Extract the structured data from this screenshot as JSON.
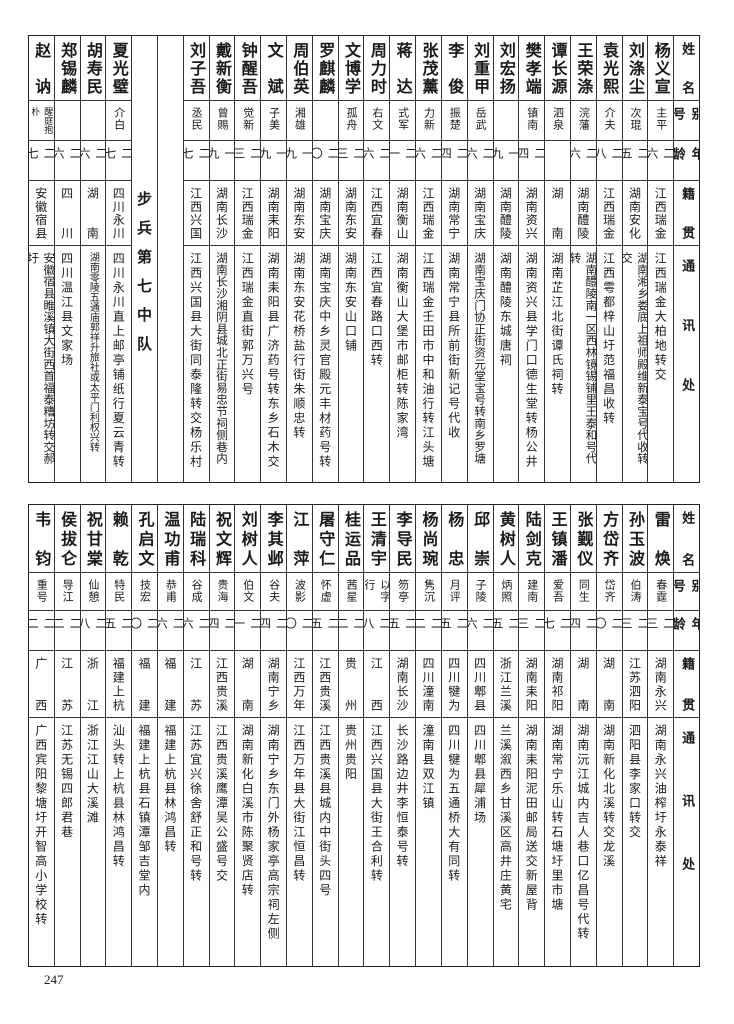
{
  "headers": {
    "name": "姓名",
    "alias": "别号",
    "age": "年龄",
    "origin": "籍贯",
    "address": "通讯处"
  },
  "top": {
    "columns_before": [
      {
        "name": "杨义宣",
        "alias": "主平",
        "age": "二六",
        "origin": "江西瑞金",
        "address": "江西瑞金大柏地转交"
      },
      {
        "name": "刘涤尘",
        "alias": "次琨",
        "age": "二五",
        "origin": "湖南安化",
        "address": "湖南湘乡娄底上祖师殿维新泰宝号代收转交"
      },
      {
        "name": "袁光熙",
        "alias": "介夫",
        "age": "二八",
        "origin": "江西瑞金",
        "address": "江西雩都梓山圩范福昌收转"
      },
      {
        "name": "王荣涤",
        "alias": "浣藩",
        "age": "二六",
        "origin": "湖南醴陵",
        "address": "湖南醴陵南一区西林镜锡铺里王泰和号代转"
      },
      {
        "name": "谭长源",
        "alias": "泗泉",
        "age": "",
        "origin": "湖南",
        "address": "湖南芷江北街谭氏祠转"
      },
      {
        "name": "樊孝端",
        "alias": "镇南",
        "age": "二四",
        "origin": "湖南资兴",
        "address": "湖南资兴县学门口德生堂转杨公井"
      },
      {
        "name": "刘宏扬",
        "alias": "",
        "age": "一九",
        "origin": "湖南醴陵",
        "address": "湖南醴陵东城唐祠"
      },
      {
        "name": "刘重甲",
        "alias": "岳武",
        "age": "二六",
        "origin": "湖南宝庆",
        "address": "湖南宝庆门协正街资元堂宝号转南乡罗塘"
      },
      {
        "name": "李俊",
        "alias": "振楚",
        "age": "二四",
        "origin": "湖南常宁",
        "address": "湖南常宁县所前街新记号代收"
      },
      {
        "name": "张茂薰",
        "alias": "力新",
        "age": "二六",
        "origin": "江西瑞金",
        "address": "江西瑞金壬田市中和油行转江头塘"
      },
      {
        "name": "蒋达",
        "alias": "式军",
        "age": "二一",
        "origin": "湖南衡山",
        "address": "湖南衡山大堡市邮柜转陈家湾"
      },
      {
        "name": "周力时",
        "alias": "右文",
        "age": "二六",
        "origin": "江西宜春",
        "address": "江西宜春路口西转"
      },
      {
        "name": "文博学",
        "alias": "孤舟",
        "age": "二三",
        "origin": "湖南东安",
        "address": "湖南东安山口铺"
      },
      {
        "name": "罗麒麟",
        "alias": "",
        "age": "二〇",
        "origin": "湖南宝庆",
        "address": "湖南宝庆中乡灵官殿元丰材药号转"
      },
      {
        "name": "周伯英",
        "alias": "湘雄",
        "age": "一九",
        "origin": "湖南东安",
        "address": "湖南东安花桥盐行街朱顺忠转"
      },
      {
        "name": "文斌",
        "alias": "子美",
        "age": "一九",
        "origin": "湖南耒阳",
        "address": "湖南耒阳县广济药号转东乡石木交"
      },
      {
        "name": "钟醒吾",
        "alias": "觉新",
        "age": "二三",
        "origin": "江西瑞金",
        "address": "江西瑞金直街郭万兴号"
      },
      {
        "name": "戴新衡",
        "alias": "曾赐",
        "age": "一九",
        "origin": "湖南长沙",
        "address": "湖南长沙湘阴县城北正街易忠节祠侧巷内"
      },
      {
        "name": "刘子吾",
        "alias": "丞民",
        "age": "二七",
        "origin": "江西兴国",
        "address": "江西兴国县大街同泰隆转交杨乐村"
      }
    ],
    "section_label": "步兵第七中队",
    "columns_after": [
      {
        "name": "夏光璧",
        "alias": "介白",
        "age": "二七",
        "origin": "四川永川",
        "address": "四川永川直上邮亭铺纸行夏云青转"
      },
      {
        "name": "胡寿民",
        "alias": "",
        "age": "二六",
        "origin": "湖南",
        "address": "湖南零陵五通庙郭祥升旅社或太平门利权兴转"
      },
      {
        "name": "郑锡麟",
        "alias": "",
        "age": "二六",
        "origin": "四川",
        "address": "四川温江县文家场"
      },
      {
        "name": "赵讷",
        "alias": "醒庭抱朴",
        "age": "二七",
        "origin": "安徽宿县",
        "address": "安徽宿县睢溪镇大街西首福泰糟坊转交郝圩"
      }
    ]
  },
  "bottom": {
    "columns": [
      {
        "name": "雷焕",
        "alias": "春霆",
        "age": "二三",
        "origin": "湖南永兴",
        "address": "湖南永兴油榨圩永泰祥"
      },
      {
        "name": "孙玉波",
        "alias": "伯涛",
        "age": "二三",
        "origin": "江苏泗阳",
        "address": "泗阳县李家口转交"
      },
      {
        "name": "方岱齐",
        "alias": "岱齐",
        "age": "二〇",
        "origin": "湖南",
        "address": "湖南新化北溪转交龙溪"
      },
      {
        "name": "张觐仪",
        "alias": "同生",
        "age": "二四",
        "origin": "湖南",
        "address": "湖南沅江城内吉人巷口亿昌号代转"
      },
      {
        "name": "王镇潘",
        "alias": "爱吾",
        "age": "二七",
        "origin": "湖南祁阳",
        "address": "湖南常宁乐山转石塘圩里市塘"
      },
      {
        "name": "陆剑克",
        "alias": "建南",
        "age": "二三",
        "origin": "湖南耒阳",
        "address": "湖南耒阳泥田邮局送交新屋背"
      },
      {
        "name": "黄树人",
        "alias": "炳照",
        "age": "二五",
        "origin": "浙江兰溪",
        "address": "兰溪溆西乡甘溪区高井庄黄宅"
      },
      {
        "name": "邱崇",
        "alias": "子陵",
        "age": "二六",
        "origin": "四川郫县",
        "address": "四川郫县犀浦场"
      },
      {
        "name": "杨忠",
        "alias": "月评",
        "age": "二五",
        "origin": "四川犍为",
        "address": "四川犍为五通桥大有同转"
      },
      {
        "name": "杨尚琬",
        "alias": "隽沉",
        "age": "二二",
        "origin": "四川潼南",
        "address": "潼南县双江镇"
      },
      {
        "name": "李导民",
        "alias": "笏亭",
        "age": "二五",
        "origin": "湖南长沙",
        "address": "长沙路边井李恒泰号转"
      },
      {
        "name": "王清宇",
        "alias": "以字行",
        "age": "二八",
        "origin": "江西",
        "address": "江西兴国县大街王合利转"
      },
      {
        "name": "桂运品",
        "alias": "茜星",
        "age": "二二",
        "origin": "贵州",
        "address": "贵州贵阳"
      },
      {
        "name": "屠守仁",
        "alias": "怀虚",
        "age": "二五",
        "origin": "江西贵溪",
        "address": "江西贵溪县城内中街头四号"
      },
      {
        "name": "江萍",
        "alias": "波影",
        "age": "二〇",
        "origin": "江西万年",
        "address": "江西万年县大街江恒昌转"
      },
      {
        "name": "李其邺",
        "alias": "谷夫",
        "age": "二四",
        "origin": "湖南宁乡",
        "address": "湖南宁乡东门外杨家亭高宗祠左侧"
      },
      {
        "name": "刘树人",
        "alias": "伯文",
        "age": "二一",
        "origin": "湖南",
        "address": "湖南新化白溪市陈聚贤店转"
      },
      {
        "name": "祝文辉",
        "alias": "贵海",
        "age": "二四",
        "origin": "江西贵溪",
        "address": "江西贵溪鹰潭吴公盛号交"
      },
      {
        "name": "陆瑞科",
        "alias": "谷成",
        "age": "二六",
        "origin": "江苏",
        "address": "江苏宜兴徐舍舒正和号转"
      },
      {
        "name": "温功甫",
        "alias": "恭甫",
        "age": "二六",
        "origin": "福建",
        "address": "福建上杭县林鸿昌转"
      },
      {
        "name": "孔启文",
        "alias": "技宏",
        "age": "二〇",
        "origin": "福建",
        "address": "福建上杭县石镇潭邹吉堂内"
      },
      {
        "name": "赖乾",
        "alias": "特民",
        "age": "二五",
        "origin": "福建上杭",
        "address": "汕头转上杭县林鸿昌转"
      },
      {
        "name": "祝甘棠",
        "alias": "仙憩",
        "age": "二八",
        "origin": "浙江",
        "address": "浙江江山大溪滩"
      },
      {
        "name": "侯拔仑",
        "alias": "导江",
        "age": "二二",
        "origin": "江苏",
        "address": "江苏无锡四郎君巷"
      },
      {
        "name": "韦钧",
        "alias": "重号",
        "age": "二二",
        "origin": "广西",
        "address": "广西宾阳黎塘圩开智高小学校转"
      }
    ]
  },
  "page_number": "247"
}
